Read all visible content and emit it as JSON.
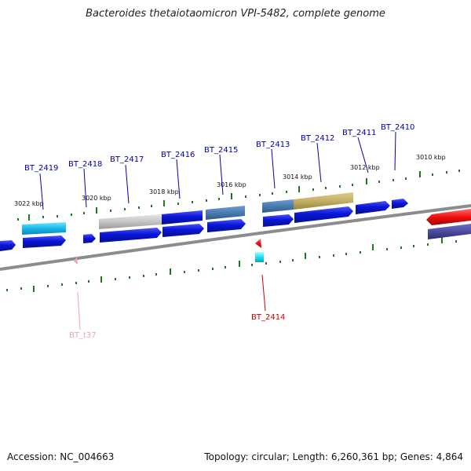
{
  "title": "Bacteroides thetaiotaomicron VPI-5482, complete genome",
  "footer": {
    "accession": "Accession: NC_004663",
    "summary": "Topology: circular; Length: 6,260,361 bp; Genes: 4,864"
  },
  "scale_labels": [
    "3022 kbp",
    "3020 kbp",
    "3018 kbp",
    "3016 kbp",
    "3014 kbp",
    "3012 kbp",
    "3010 kbp"
  ],
  "gene_labels": [
    "BT_2419",
    "BT_2418",
    "BT_2417",
    "BT_2416",
    "BT_2415",
    "BT_2413",
    "BT_2412",
    "BT_2411",
    "BT_2410",
    "BT_2414",
    "BT_t37"
  ],
  "colors": {
    "cds": "#0a14d8",
    "backbone": "#808080",
    "ticks": "#1f7a1f",
    "label_blue": "#0000aa",
    "label_red": "#cc0000",
    "label_pink": "#f0a0c0"
  }
}
